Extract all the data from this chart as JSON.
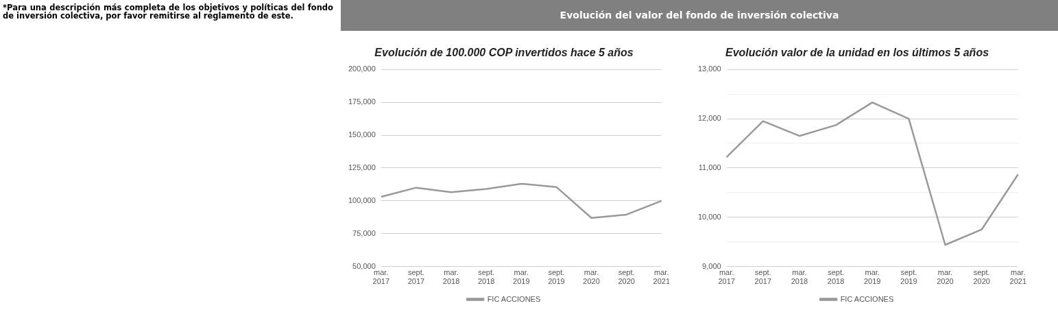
{
  "chart_data": [
    {
      "type": "other",
      "title": "Evolución del valor del fondo de inversión colectiva",
      "annotations": [
        "*Para una descripción más completa de los objetivos y políticas del fondo de inversión colectiva, por favor remitirse al reglamento de este."
      ]
    },
    {
      "type": "line",
      "title": "Evolución de 100.000 COP invertidos hace 5 años",
      "categories": [
        "mar. 2017",
        "sept. 2017",
        "mar. 2018",
        "sept. 2018",
        "mar. 2019",
        "sept. 2019",
        "mar. 2020",
        "sept. 2020",
        "mar. 2021"
      ],
      "series": [
        {
          "name": "FIC ACCIONES",
          "color": "#999999",
          "values": [
            103000,
            110000,
            106500,
            109000,
            113000,
            110500,
            87000,
            89500,
            100000
          ]
        }
      ],
      "ylim": [
        50000,
        200000
      ],
      "yticks": [
        {
          "value": 50000,
          "label": "50,000"
        },
        {
          "value": 75000,
          "label": "75,000"
        },
        {
          "value": 100000,
          "label": "100,000"
        },
        {
          "value": 125000,
          "label": "125,000"
        },
        {
          "value": 150000,
          "label": "150,000"
        },
        {
          "value": 175000,
          "label": "175,000"
        },
        {
          "value": 200000,
          "label": "200,000"
        }
      ],
      "grid": "y",
      "legend": "bottom",
      "marker": "none",
      "line_style": "solid"
    },
    {
      "type": "line",
      "title": "Evolución valor de la unidad en los últimos 5 años",
      "categories": [
        "mar. 2017",
        "sept. 2017",
        "mar. 2018",
        "sept. 2018",
        "mar. 2019",
        "sept. 2019",
        "mar. 2020",
        "sept. 2020",
        "mar. 2021"
      ],
      "series": [
        {
          "name": "FIC ACCIONES",
          "color": "#999999",
          "values": [
            11220,
            11950,
            11650,
            11870,
            12330,
            12000,
            9440,
            9750,
            10870
          ]
        }
      ],
      "ylim": [
        9000,
        13000
      ],
      "yticks": [
        {
          "value": 9000,
          "label": "9,000"
        },
        {
          "value": 9500,
          "label": null
        },
        {
          "value": 10000,
          "label": "10,000"
        },
        {
          "value": 10500,
          "label": null
        },
        {
          "value": 11000,
          "label": "11,000"
        },
        {
          "value": 11500,
          "label": null
        },
        {
          "value": 12000,
          "label": "12,000"
        },
        {
          "value": 12500,
          "label": null
        },
        {
          "value": 13000,
          "label": "13,000"
        }
      ],
      "grid": "y",
      "legend": "bottom",
      "marker": "none",
      "line_style": "solid"
    }
  ]
}
